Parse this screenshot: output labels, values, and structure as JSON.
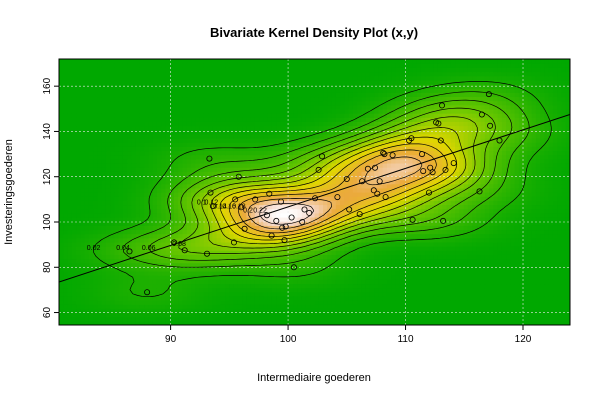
{
  "chart_data": {
    "type": "scatter",
    "title": "Bivariate Kernel Density Plot (x,y)",
    "xlabel": "Intermediaire goederen",
    "ylabel": "Investeringsgoederen",
    "xlim": [
      80.5,
      124
    ],
    "ylim": [
      54.5,
      172
    ],
    "x_ticks": [
      90,
      100,
      110,
      120
    ],
    "y_ticks": [
      60,
      80,
      100,
      120,
      140,
      160
    ],
    "grid": true,
    "density_background": true,
    "contour_labels": [
      "0.02",
      "0.04",
      "0.06",
      "0.08",
      "0.1",
      "0.12",
      "0.14",
      "0.16",
      "0.18",
      "0.2",
      "0.22"
    ],
    "regression_line": {
      "x": [
        80.5,
        124
      ],
      "y": [
        73.5,
        147.5
      ]
    },
    "points": [
      [
        86.5,
        87
      ],
      [
        88,
        69
      ],
      [
        90.3,
        91
      ],
      [
        91.2,
        87.5
      ],
      [
        93.1,
        86
      ],
      [
        93.3,
        128
      ],
      [
        93.4,
        113
      ],
      [
        93.6,
        107
      ],
      [
        95.4,
        91
      ],
      [
        95.5,
        110
      ],
      [
        95.8,
        120
      ],
      [
        96,
        106.5
      ],
      [
        96.3,
        97
      ],
      [
        97.2,
        110
      ],
      [
        98.2,
        103
      ],
      [
        98.4,
        112.5
      ],
      [
        98.6,
        94
      ],
      [
        99,
        100.5
      ],
      [
        99.5,
        97.5
      ],
      [
        99.4,
        109
      ],
      [
        99.8,
        98
      ],
      [
        99.7,
        92
      ],
      [
        100.3,
        102
      ],
      [
        100.5,
        80
      ],
      [
        101.2,
        100
      ],
      [
        101.4,
        105.5
      ],
      [
        101.8,
        104
      ],
      [
        102.3,
        110.5
      ],
      [
        102.6,
        123
      ],
      [
        102.9,
        129
      ],
      [
        104.2,
        111
      ],
      [
        105,
        119
      ],
      [
        105.2,
        105.5
      ],
      [
        106.1,
        103.5
      ],
      [
        106.3,
        118
      ],
      [
        106.8,
        123.5
      ],
      [
        107.3,
        114
      ],
      [
        107.4,
        124
      ],
      [
        107.6,
        112.5
      ],
      [
        107.8,
        118
      ],
      [
        108.1,
        130.5
      ],
      [
        108.2,
        130
      ],
      [
        108.3,
        111
      ],
      [
        108.9,
        129.5
      ],
      [
        110.3,
        136
      ],
      [
        110.5,
        137
      ],
      [
        110.6,
        101
      ],
      [
        111.4,
        130
      ],
      [
        111.5,
        122.5
      ],
      [
        112,
        113
      ],
      [
        112.1,
        124
      ],
      [
        112.3,
        122
      ],
      [
        112.6,
        144
      ],
      [
        112.8,
        143.5
      ],
      [
        113,
        136
      ],
      [
        113.1,
        151.5
      ],
      [
        113.2,
        100.5
      ],
      [
        113.4,
        123
      ],
      [
        114.1,
        126
      ],
      [
        116.3,
        113.5
      ],
      [
        116.5,
        147.5
      ],
      [
        117.1,
        156.5
      ],
      [
        117.2,
        142.5
      ],
      [
        118,
        136
      ]
    ]
  }
}
